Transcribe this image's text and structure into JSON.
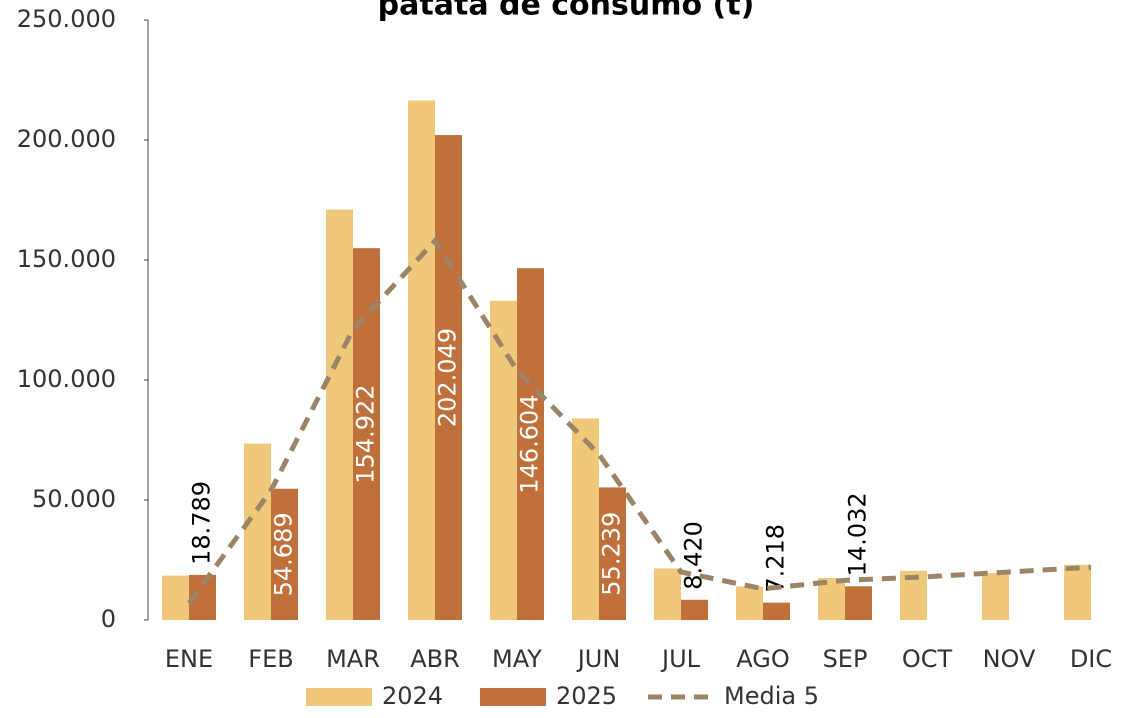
{
  "chart_data": {
    "type": "bar",
    "title": "patata de consumo (t)",
    "categories": [
      "ENE",
      "FEB",
      "MAR",
      "ABR",
      "MAY",
      "JUN",
      "JUL",
      "AGO",
      "SEP",
      "OCT",
      "NOV",
      "DIC"
    ],
    "series": [
      {
        "name": "2024",
        "color": "#f0c87a",
        "values": [
          18500,
          73500,
          171000,
          216500,
          133000,
          84000,
          21500,
          14000,
          17500,
          20500,
          19500,
          23000
        ]
      },
      {
        "name": "2025",
        "color": "#c0703a",
        "values": [
          18789,
          54689,
          154922,
          202049,
          146604,
          55239,
          8420,
          7218,
          14032,
          null,
          null,
          null
        ],
        "value_labels": [
          "18.789",
          "54.689",
          "154.922",
          "202.049",
          "146.604",
          "55.239",
          "8.420",
          "7.218",
          "14.032",
          null,
          null,
          null
        ]
      },
      {
        "name": "Media 5",
        "color": "#9c8567",
        "type": "line",
        "values": [
          7000,
          54000,
          121000,
          158000,
          104000,
          69000,
          20000,
          13000,
          16500,
          18000,
          20000,
          22000
        ]
      }
    ],
    "ylim": [
      0,
      250000
    ],
    "yticks": [
      0,
      {
        "value": 50000,
        "label": "50.000"
      },
      {
        "value": 100000,
        "label": "100.000"
      },
      {
        "value": 150000,
        "label": "150.000"
      },
      {
        "value": 200000,
        "label": "200.000"
      },
      {
        "value": 250000,
        "label": "250.000"
      }
    ],
    "grid": false,
    "legend": "bottom"
  }
}
